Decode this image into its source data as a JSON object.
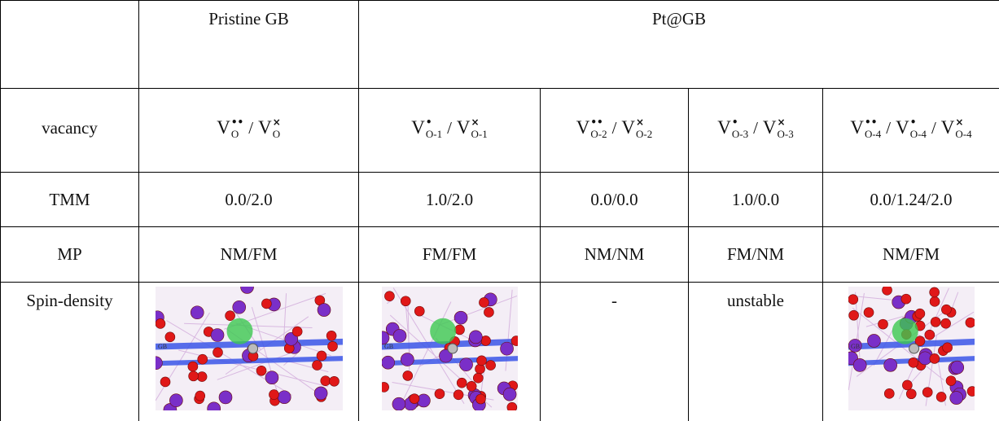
{
  "table": {
    "header": [
      "Pristine GB",
      "Pt@GB"
    ],
    "separator": "/",
    "rows": [
      {
        "label": "vacancy",
        "cells": [
          [
            {
              "base": "V",
              "sup": "••",
              "sub": "O"
            },
            {
              "base": "V",
              "sup": "×",
              "sub": "O"
            }
          ],
          [
            {
              "base": "V",
              "sup": "•",
              "sub": "O-1"
            },
            {
              "base": "V",
              "sup": "×",
              "sub": "O-1"
            }
          ],
          [
            {
              "base": "V",
              "sup": "••",
              "sub": "O-2"
            },
            {
              "base": "V",
              "sup": "×",
              "sub": "O-2"
            }
          ],
          [
            {
              "base": "V",
              "sup": "•",
              "sub": "O-3"
            },
            {
              "base": "V",
              "sup": "×",
              "sub": "O-3"
            }
          ],
          [
            {
              "base": "V",
              "sup": "••",
              "sub": "O-4"
            },
            {
              "base": "V",
              "sup": "•",
              "sub": "O-4"
            },
            {
              "base": "V",
              "sup": "×",
              "sub": "O-4"
            }
          ]
        ]
      },
      {
        "label": "TMM",
        "cells": [
          "0.0/2.0",
          "1.0/2.0",
          "0.0/0.0",
          "1.0/0.0",
          "0.0/1.24/2.0"
        ]
      },
      {
        "label": "MP",
        "cells": [
          "NM/FM",
          "FM/FM",
          "NM/NM",
          "FM/NM",
          "NM/FM"
        ]
      },
      {
        "label": "Spin-density",
        "cells": [
          {
            "image_label": "GB"
          },
          {
            "image_label": "GB"
          },
          "-",
          "unstable",
          {
            "image_label": "GB"
          }
        ]
      }
    ]
  }
}
